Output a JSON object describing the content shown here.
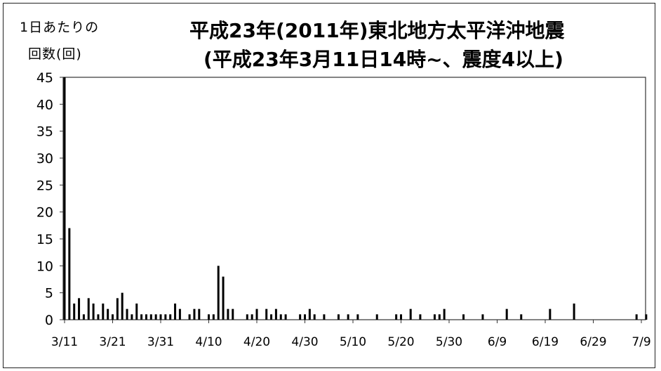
{
  "ylabel_line1": "1日あたりの",
  "ylabel_line2": "回数(回)",
  "title_line1": "平成23年(2011年)東北地方太平洋沖地震",
  "title_line2": "(平成23年3月11日14時~、震度4以上)",
  "chart_data": {
    "type": "bar",
    "title": "平成23年(2011年)東北地方太平洋沖地震 (平成23年3月11日14時~、震度4以上)",
    "ylabel": "1日あたりの 回数(回)",
    "xlabel": "",
    "ylim": [
      0,
      45
    ],
    "yticks": [
      0,
      5,
      10,
      15,
      20,
      25,
      30,
      35,
      40,
      45
    ],
    "xtick_labels": [
      "3/11",
      "3/21",
      "3/31",
      "4/10",
      "4/20",
      "4/30",
      "5/10",
      "5/20",
      "5/30",
      "6/9",
      "6/19",
      "6/29",
      "7/9"
    ],
    "x_range": [
      "3/11",
      "7/9"
    ],
    "grid": false,
    "bar_color": "#000000",
    "points": [
      {
        "date": "3/11",
        "value": 45
      },
      {
        "date": "3/12",
        "value": 17
      },
      {
        "date": "3/13",
        "value": 3
      },
      {
        "date": "3/14",
        "value": 4
      },
      {
        "date": "3/15",
        "value": 1
      },
      {
        "date": "3/16",
        "value": 4
      },
      {
        "date": "3/17",
        "value": 3
      },
      {
        "date": "3/18",
        "value": 1
      },
      {
        "date": "3/19",
        "value": 3
      },
      {
        "date": "3/20",
        "value": 2
      },
      {
        "date": "3/21",
        "value": 1
      },
      {
        "date": "3/22",
        "value": 4
      },
      {
        "date": "3/23",
        "value": 5
      },
      {
        "date": "3/24",
        "value": 2
      },
      {
        "date": "3/25",
        "value": 1
      },
      {
        "date": "3/26",
        "value": 3
      },
      {
        "date": "3/27",
        "value": 1
      },
      {
        "date": "3/28",
        "value": 1
      },
      {
        "date": "3/29",
        "value": 1
      },
      {
        "date": "3/30",
        "value": 1
      },
      {
        "date": "3/31",
        "value": 1
      },
      {
        "date": "4/1",
        "value": 1
      },
      {
        "date": "4/2",
        "value": 1
      },
      {
        "date": "4/3",
        "value": 3
      },
      {
        "date": "4/4",
        "value": 2
      },
      {
        "date": "4/6",
        "value": 1
      },
      {
        "date": "4/7",
        "value": 2
      },
      {
        "date": "4/8",
        "value": 2
      },
      {
        "date": "4/10",
        "value": 1
      },
      {
        "date": "4/11",
        "value": 1
      },
      {
        "date": "4/12",
        "value": 10
      },
      {
        "date": "4/13",
        "value": 8
      },
      {
        "date": "4/14",
        "value": 2
      },
      {
        "date": "4/15",
        "value": 2
      },
      {
        "date": "4/18",
        "value": 1
      },
      {
        "date": "4/19",
        "value": 1
      },
      {
        "date": "4/20",
        "value": 2
      },
      {
        "date": "4/22",
        "value": 2
      },
      {
        "date": "4/23",
        "value": 1
      },
      {
        "date": "4/24",
        "value": 2
      },
      {
        "date": "4/25",
        "value": 1
      },
      {
        "date": "4/26",
        "value": 1
      },
      {
        "date": "4/29",
        "value": 1
      },
      {
        "date": "4/30",
        "value": 1
      },
      {
        "date": "5/1",
        "value": 2
      },
      {
        "date": "5/2",
        "value": 1
      },
      {
        "date": "5/4",
        "value": 1
      },
      {
        "date": "5/7",
        "value": 1
      },
      {
        "date": "5/9",
        "value": 1
      },
      {
        "date": "5/11",
        "value": 1
      },
      {
        "date": "5/15",
        "value": 1
      },
      {
        "date": "5/19",
        "value": 1
      },
      {
        "date": "5/20",
        "value": 1
      },
      {
        "date": "5/22",
        "value": 2
      },
      {
        "date": "5/24",
        "value": 1
      },
      {
        "date": "5/27",
        "value": 1
      },
      {
        "date": "5/28",
        "value": 1
      },
      {
        "date": "5/29",
        "value": 2
      },
      {
        "date": "6/2",
        "value": 1
      },
      {
        "date": "6/6",
        "value": 1
      },
      {
        "date": "6/11",
        "value": 2
      },
      {
        "date": "6/14",
        "value": 1
      },
      {
        "date": "6/20",
        "value": 2
      },
      {
        "date": "6/25",
        "value": 3
      },
      {
        "date": "7/8",
        "value": 1
      },
      {
        "date": "7/10",
        "value": 1
      }
    ]
  }
}
